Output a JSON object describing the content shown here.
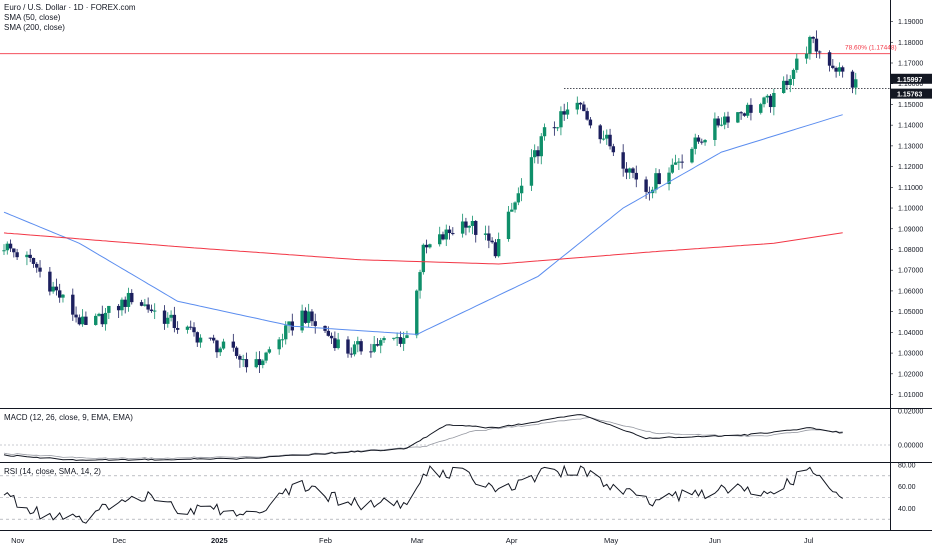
{
  "header": {
    "title": "Euro / U.S. Dollar · 1D · FOREX.com",
    "sma50_label": "SMA (50, close)",
    "sma200_label": "SMA (200, close)"
  },
  "indicators": {
    "macd_label": "MACD (12, 26, close, 9, EMA, EMA)",
    "rsi_label": "RSI (14, close, SMA, 14, 2)"
  },
  "colors": {
    "up_candle": "#26a69a",
    "up_candle_display": "#0f8f6a",
    "down_candle": "#1c1f5e",
    "sma50": "#5b8def",
    "sma200": "#f23645",
    "fib_line": "#f23645",
    "price_badge": "#131722"
  },
  "chart_data": [
    {
      "type": "candlestick",
      "title": "Euro / U.S. Dollar · 1D · FOREX.com",
      "y_axis_ticks": [
        "1.19000",
        "1.18000",
        "1.17000",
        "1.16000",
        "1.15000",
        "1.14000",
        "1.13000",
        "1.12000",
        "1.11000",
        "1.10000",
        "1.09000",
        "1.08000",
        "1.07000",
        "1.06000",
        "1.05000",
        "1.04000",
        "1.03000",
        "1.02000",
        "1.01000"
      ],
      "ylim": [
        1.0035,
        1.2004
      ],
      "x_axis_labels": [
        "Nov",
        "Dec",
        "2025",
        "Feb",
        "Mar",
        "Apr",
        "May",
        "Jun",
        "Jul"
      ],
      "price_badges": [
        "1.15997",
        "1.15763"
      ],
      "fib_level": {
        "label": "78.60% (1.17448)",
        "value": 1.17448
      },
      "dotted_level": 1.15763,
      "grid": false,
      "ohlc_approx_anchors": [
        {
          "date": "2024-10-28",
          "close": 1.082
        },
        {
          "date": "2024-11-06",
          "close": 1.073
        },
        {
          "date": "2024-11-22",
          "close": 1.042
        },
        {
          "date": "2024-12-06",
          "close": 1.057
        },
        {
          "date": "2024-12-20",
          "close": 1.043
        },
        {
          "date": "2025-01-13",
          "close": 1.024
        },
        {
          "date": "2025-01-27",
          "close": 1.049
        },
        {
          "date": "2025-02-10",
          "close": 1.031
        },
        {
          "date": "2025-02-28",
          "close": 1.038
        },
        {
          "date": "2025-03-05",
          "close": 1.079
        },
        {
          "date": "2025-03-18",
          "close": 1.094
        },
        {
          "date": "2025-03-27",
          "close": 1.08
        },
        {
          "date": "2025-04-11",
          "close": 1.136
        },
        {
          "date": "2025-04-21",
          "close": 1.15
        },
        {
          "date": "2025-05-12",
          "close": 1.109
        },
        {
          "date": "2025-06-05",
          "close": 1.144
        },
        {
          "date": "2025-06-20",
          "close": 1.152
        },
        {
          "date": "2025-07-01",
          "close": 1.18
        },
        {
          "date": "2025-07-14",
          "close": 1.16
        }
      ],
      "series": [
        {
          "name": "SMA (50, close)",
          "anchors": [
            {
              "date": "2024-10-28",
              "value": 1.098
            },
            {
              "date": "2024-11-20",
              "value": 1.083
            },
            {
              "date": "2024-12-20",
              "value": 1.055
            },
            {
              "date": "2025-01-24",
              "value": 1.043
            },
            {
              "date": "2025-03-03",
              "value": 1.039
            },
            {
              "date": "2025-04-09",
              "value": 1.067
            },
            {
              "date": "2025-05-05",
              "value": 1.1
            },
            {
              "date": "2025-06-04",
              "value": 1.127
            },
            {
              "date": "2025-07-15",
              "value": 1.147
            }
          ]
        },
        {
          "name": "SMA (200, close)",
          "anchors": [
            {
              "date": "2024-10-28",
              "value": 1.088
            },
            {
              "date": "2024-12-23",
              "value": 1.081
            },
            {
              "date": "2025-02-14",
              "value": 1.075
            },
            {
              "date": "2025-03-28",
              "value": 1.073
            },
            {
              "date": "2025-05-15",
              "value": 1.079
            },
            {
              "date": "2025-06-20",
              "value": 1.083
            },
            {
              "date": "2025-07-15",
              "value": 1.089
            }
          ]
        }
      ]
    },
    {
      "type": "line",
      "title": "MACD (12, 26, close, 9, EMA, EMA)",
      "y_axis_ticks": [
        "0.02000",
        "0.00000"
      ],
      "ylim": [
        -0.01,
        0.02
      ],
      "series": [
        {
          "name": "MACD",
          "anchors": [
            {
              "date": "2024-10-28",
              "value": -0.006
            },
            {
              "date": "2024-11-20",
              "value": -0.009
            },
            {
              "date": "2025-01-10",
              "value": -0.008
            },
            {
              "date": "2025-02-28",
              "value": -0.002
            },
            {
              "date": "2025-03-12",
              "value": 0.012
            },
            {
              "date": "2025-03-27",
              "value": 0.01
            },
            {
              "date": "2025-04-22",
              "value": 0.018
            },
            {
              "date": "2025-05-12",
              "value": 0.004
            },
            {
              "date": "2025-06-12",
              "value": 0.006
            },
            {
              "date": "2025-07-01",
              "value": 0.01
            },
            {
              "date": "2025-07-15",
              "value": 0.006
            }
          ]
        },
        {
          "name": "Signal",
          "anchors": [
            {
              "date": "2024-10-28",
              "value": -0.005
            },
            {
              "date": "2024-11-25",
              "value": -0.008
            },
            {
              "date": "2025-01-15",
              "value": -0.007
            },
            {
              "date": "2025-03-05",
              "value": -0.001
            },
            {
              "date": "2025-03-20",
              "value": 0.008
            },
            {
              "date": "2025-04-25",
              "value": 0.016
            },
            {
              "date": "2025-05-15",
              "value": 0.007
            },
            {
              "date": "2025-06-15",
              "value": 0.005
            },
            {
              "date": "2025-07-03",
              "value": 0.009
            },
            {
              "date": "2025-07-15",
              "value": 0.007
            }
          ]
        }
      ]
    },
    {
      "type": "line",
      "title": "RSI (14, close, SMA, 14, 2)",
      "y_axis_ticks": [
        "80.00",
        "60.00",
        "40.00"
      ],
      "ylim": [
        20,
        80
      ],
      "levels": [
        70,
        50,
        30
      ],
      "series": [
        {
          "name": "RSI",
          "anchors": [
            {
              "date": "2024-10-28",
              "value": 52
            },
            {
              "date": "2024-11-06",
              "value": 36
            },
            {
              "date": "2024-11-22",
              "value": 30
            },
            {
              "date": "2024-12-06",
              "value": 55
            },
            {
              "date": "2024-12-20",
              "value": 40
            },
            {
              "date": "2025-01-13",
              "value": 36
            },
            {
              "date": "2025-01-27",
              "value": 62
            },
            {
              "date": "2025-02-10",
              "value": 44
            },
            {
              "date": "2025-02-28",
              "value": 44
            },
            {
              "date": "2025-03-05",
              "value": 74
            },
            {
              "date": "2025-03-18",
              "value": 72
            },
            {
              "date": "2025-03-27",
              "value": 55
            },
            {
              "date": "2025-04-11",
              "value": 72
            },
            {
              "date": "2025-04-21",
              "value": 76
            },
            {
              "date": "2025-05-12",
              "value": 46
            },
            {
              "date": "2025-06-05",
              "value": 58
            },
            {
              "date": "2025-06-20",
              "value": 56
            },
            {
              "date": "2025-07-01",
              "value": 76
            },
            {
              "date": "2025-07-14",
              "value": 48
            }
          ]
        }
      ]
    }
  ]
}
